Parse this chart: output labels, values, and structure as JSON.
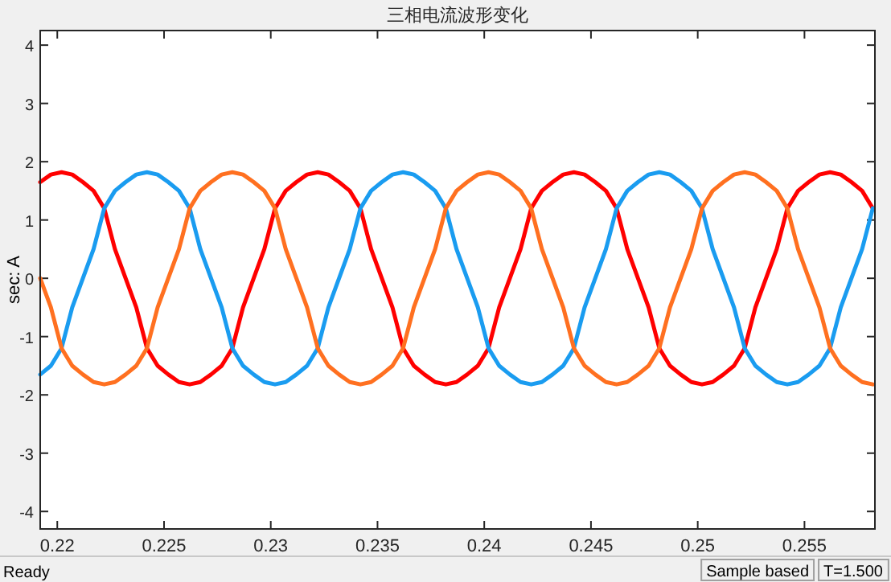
{
  "chart_data": {
    "type": "line",
    "title": "三相电流波形变化",
    "ylabel": "sec:  A",
    "x": [
      0.2192,
      0.2197,
      0.2202,
      0.2207,
      0.2212,
      0.2217,
      0.2222,
      0.2227,
      0.2232,
      0.2237,
      0.2242,
      0.2247,
      0.2252,
      0.2257,
      0.2262,
      0.2267,
      0.2272,
      0.2277,
      0.2282,
      0.2287,
      0.2292,
      0.2297,
      0.2302,
      0.2307,
      0.2312,
      0.2317,
      0.2322,
      0.2327,
      0.2332,
      0.2337,
      0.2342,
      0.2347,
      0.2352,
      0.2357,
      0.2362,
      0.2367,
      0.2372,
      0.2377,
      0.2382,
      0.2387,
      0.2392,
      0.2397,
      0.2402,
      0.2407,
      0.2412,
      0.2417,
      0.2422,
      0.2427,
      0.2432,
      0.2437,
      0.2442,
      0.2447,
      0.2452,
      0.2457,
      0.2462,
      0.2467,
      0.2472,
      0.2477,
      0.2482,
      0.2487,
      0.2492,
      0.2497,
      0.2502,
      0.2507,
      0.2512,
      0.2517,
      0.2522,
      0.2527,
      0.2532,
      0.2537,
      0.2542,
      0.2547,
      0.2552,
      0.2557,
      0.2562,
      0.2567,
      0.2572,
      0.2577,
      0.2582
    ],
    "series": [
      {
        "color": "#ff0000",
        "values": [
          1.65,
          1.78,
          1.82,
          1.78,
          1.65,
          1.5,
          1.2,
          0.5,
          0,
          -0.5,
          -1.2,
          -1.5,
          -1.65,
          -1.78,
          -1.82,
          -1.78,
          -1.65,
          -1.5,
          -1.2,
          -0.5,
          0,
          0.5,
          1.2,
          1.5,
          1.65,
          1.78,
          1.82,
          1.78,
          1.65,
          1.5,
          1.2,
          0.5,
          0,
          -0.5,
          -1.2,
          -1.5,
          -1.65,
          -1.78,
          -1.82,
          -1.78,
          -1.65,
          -1.5,
          -1.2,
          -0.5,
          0,
          0.5,
          1.2,
          1.5,
          1.65,
          1.78,
          1.82,
          1.78,
          1.65,
          1.5,
          1.2,
          0.5,
          0,
          -0.5,
          -1.2,
          -1.5,
          -1.65,
          -1.78,
          -1.82,
          -1.78,
          -1.65,
          -1.5,
          -1.2,
          -0.5,
          0,
          0.5,
          1.2,
          1.5,
          1.65,
          1.78,
          1.82,
          1.78,
          1.65,
          1.5,
          1.2
        ]
      },
      {
        "color": "#1a9cf0",
        "values": [
          -1.65,
          -1.5,
          -1.2,
          -0.5,
          0,
          0.5,
          1.2,
          1.5,
          1.65,
          1.78,
          1.82,
          1.78,
          1.65,
          1.5,
          1.2,
          0.5,
          0,
          -0.5,
          -1.2,
          -1.5,
          -1.65,
          -1.78,
          -1.82,
          -1.78,
          -1.65,
          -1.5,
          -1.2,
          -0.5,
          0,
          0.5,
          1.2,
          1.5,
          1.65,
          1.78,
          1.82,
          1.78,
          1.65,
          1.5,
          1.2,
          0.5,
          0,
          -0.5,
          -1.2,
          -1.5,
          -1.65,
          -1.78,
          -1.82,
          -1.78,
          -1.65,
          -1.5,
          -1.2,
          -0.5,
          0,
          0.5,
          1.2,
          1.5,
          1.65,
          1.78,
          1.82,
          1.78,
          1.65,
          1.5,
          1.2,
          0.5,
          0,
          -0.5,
          -1.2,
          -1.5,
          -1.65,
          -1.78,
          -1.82,
          -1.78,
          -1.65,
          -1.5,
          -1.2,
          -0.5,
          0,
          0.5,
          1.2
        ]
      },
      {
        "color": "#ff7020",
        "values": [
          0,
          -0.5,
          -1.2,
          -1.5,
          -1.65,
          -1.78,
          -1.82,
          -1.78,
          -1.65,
          -1.5,
          -1.2,
          -0.5,
          0,
          0.5,
          1.2,
          1.5,
          1.65,
          1.78,
          1.82,
          1.78,
          1.65,
          1.5,
          1.2,
          0.5,
          0,
          -0.5,
          -1.2,
          -1.5,
          -1.65,
          -1.78,
          -1.82,
          -1.78,
          -1.65,
          -1.5,
          -1.2,
          -0.5,
          0,
          0.5,
          1.2,
          1.5,
          1.65,
          1.78,
          1.82,
          1.78,
          1.65,
          1.5,
          1.2,
          0.5,
          0,
          -0.5,
          -1.2,
          -1.5,
          -1.65,
          -1.78,
          -1.82,
          -1.78,
          -1.65,
          -1.5,
          -1.2,
          -0.5,
          0,
          0.5,
          1.2,
          1.5,
          1.65,
          1.78,
          1.82,
          1.78,
          1.65,
          1.5,
          1.2,
          0.5,
          0,
          -0.5,
          -1.2,
          -1.5,
          -1.65,
          -1.78,
          -1.82
        ]
      }
    ],
    "xlim": [
      0.2192,
      0.2583
    ],
    "xticks": [
      0.22,
      0.225,
      0.23,
      0.235,
      0.24,
      0.245,
      0.25,
      0.255
    ],
    "ylim": [
      -4.3,
      4.25
    ],
    "yticks": [
      -4,
      -3,
      -2,
      -1,
      0,
      1,
      2,
      3,
      4
    ],
    "grid": false,
    "marker": "none",
    "line_style": "solid",
    "annotations": [
      "Ready",
      "Sample based",
      "T=1.500"
    ]
  }
}
